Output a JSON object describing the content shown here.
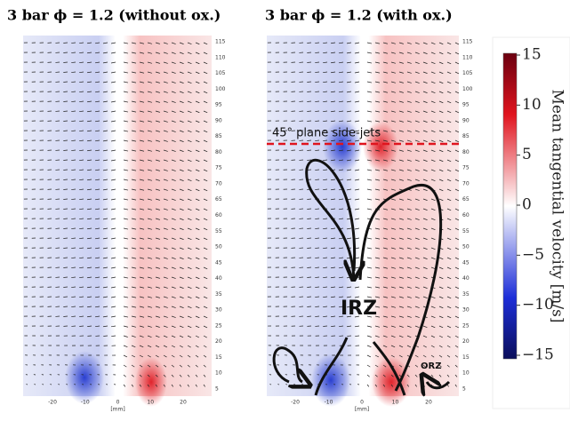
{
  "panels": [
    {
      "title": "3 bar ϕ = 1.2 (without ox.)",
      "y_tick_labels": [
        "5",
        "10",
        "15",
        "20",
        "25",
        "30",
        "35",
        "40",
        "45",
        "50",
        "55",
        "60",
        "65",
        "70",
        "75",
        "80",
        "85",
        "90",
        "95",
        "100",
        "105",
        "110",
        "115"
      ],
      "x_tick_labels": [
        "-20",
        "-10",
        "0",
        "10",
        "20"
      ],
      "x_axis_label": "[mm]"
    },
    {
      "title": "3 bar ϕ = 1.2 (with ox.)",
      "y_tick_labels": [
        "5",
        "10",
        "15",
        "20",
        "25",
        "30",
        "35",
        "40",
        "45",
        "50",
        "55",
        "60",
        "65",
        "70",
        "75",
        "80",
        "85",
        "90",
        "95",
        "100",
        "105",
        "110",
        "115"
      ],
      "x_tick_labels": [
        "-20",
        "-10",
        "0",
        "10",
        "20"
      ],
      "x_axis_label": "[mm]",
      "annotations": [
        "45° plane side-jets",
        "IRZ",
        "ORZ"
      ]
    }
  ],
  "colorbar": {
    "tick_labels": [
      "15",
      "10",
      "5",
      "0",
      "−5",
      "−10",
      "−15"
    ],
    "label": "Mean tangential velocity [m/s]"
  }
}
